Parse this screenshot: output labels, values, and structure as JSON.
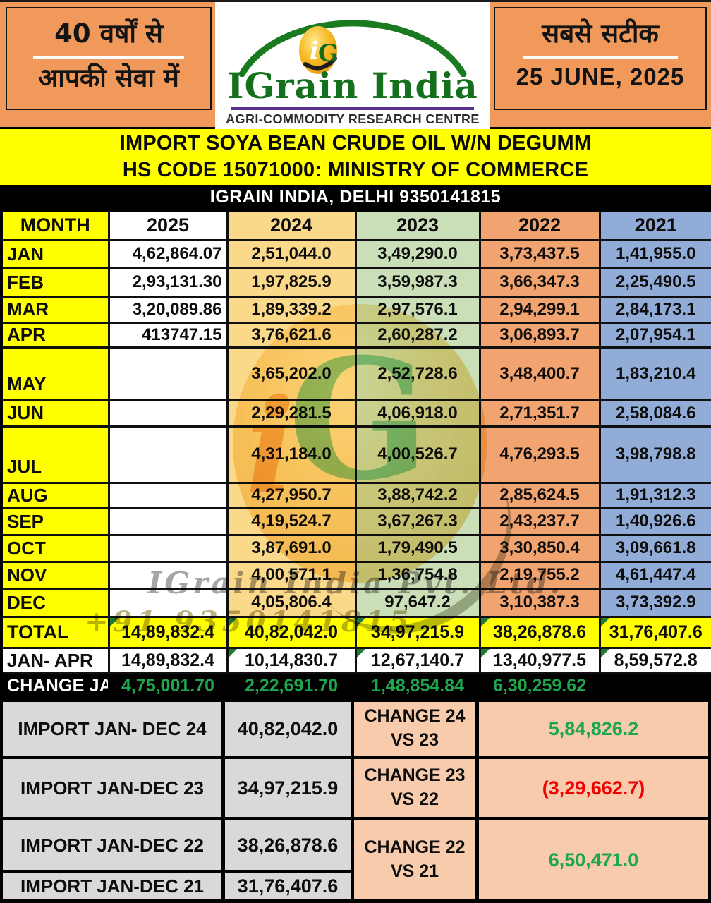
{
  "header": {
    "left_line1": "40 वर्षों से",
    "left_line2": "आपकी सेवा में",
    "logo_monogram_i": "i",
    "logo_monogram_g": "G",
    "logo_title": "IGrain India",
    "logo_subtitle": "AGRI-COMMODITY RESEARCH CENTRE",
    "right_line1": "सबसे सटीक",
    "right_date": "25 JUNE, 2025"
  },
  "title": {
    "line1": "IMPORT SOYA BEAN CRUDE OIL W/N DEGUMM",
    "line2": "HS CODE 15071000: MINISTRY OF COMMERCE",
    "contact_bar": "IGRAIN INDIA, DELHI 9350141815"
  },
  "table": {
    "columns": [
      "MONTH",
      "2025",
      "2024",
      "2023",
      "2022",
      "2021"
    ],
    "rows": [
      {
        "month": "JAN",
        "values": [
          "4,62,864.07",
          "2,51,044.0",
          "3,49,290.0",
          "3,73,437.5",
          "1,41,955.0"
        ]
      },
      {
        "month": "FEB",
        "values": [
          "2,93,131.30",
          "1,97,825.9",
          "3,59,987.3",
          "3,66,347.3",
          "2,25,490.5"
        ]
      },
      {
        "month": "MAR",
        "values": [
          "3,20,089.86",
          "1,89,339.2",
          "2,97,576.1",
          "2,94,299.1",
          "2,84,173.1"
        ]
      },
      {
        "month": "APR",
        "values": [
          "413747.15",
          "3,76,621.6",
          "2,60,287.2",
          "3,06,893.7",
          "2,07,954.1"
        ]
      },
      {
        "month": "MAY",
        "values": [
          "",
          "3,65,202.0",
          "2,52,728.6",
          "3,48,400.7",
          "1,83,210.4"
        ]
      },
      {
        "month": "JUN",
        "values": [
          "",
          "2,29,281.5",
          "4,06,918.0",
          "2,71,351.7",
          "2,58,084.6"
        ]
      },
      {
        "month": "JUL",
        "values": [
          "",
          "4,31,184.0",
          "4,00,526.7",
          "4,76,293.5",
          "3,98,798.8"
        ]
      },
      {
        "month": "AUG",
        "values": [
          "",
          "4,27,950.7",
          "3,88,742.2",
          "2,85,624.5",
          "1,91,312.3"
        ]
      },
      {
        "month": "SEP",
        "values": [
          "",
          "4,19,524.7",
          "3,67,267.3",
          "2,43,237.7",
          "1,40,926.6"
        ]
      },
      {
        "month": "OCT",
        "values": [
          "",
          "3,87,691.0",
          "1,79,490.5",
          "3,30,850.4",
          "3,09,661.8"
        ]
      },
      {
        "month": "NOV",
        "values": [
          "",
          "4,00,571.1",
          "1,36,754.8",
          "2,19,755.2",
          "4,61,447.4"
        ]
      },
      {
        "month": "DEC",
        "values": [
          "",
          "4,05,806.4",
          "97,647.2",
          "3,10,387.3",
          "3,73,392.9"
        ]
      }
    ],
    "total": {
      "label": "TOTAL",
      "values": [
        "14,89,832.4",
        "40,82,042.0",
        "34,97,215.9",
        "38,26,878.6",
        "31,76,407.6"
      ]
    },
    "jan_apr": {
      "label": "JAN- APR",
      "values": [
        "14,89,832.4",
        "10,14,830.7",
        "12,67,140.7",
        "13,40,977.5",
        "8,59,572.8"
      ]
    },
    "change": {
      "label": "CHANGE JAN",
      "values": [
        "4,75,001.70",
        "2,22,691.70",
        "1,48,854.84",
        "6,30,259.62",
        ""
      ]
    }
  },
  "summary": {
    "rows": [
      {
        "label": "IMPORT JAN- DEC 24",
        "value": "40,82,042.0"
      },
      {
        "label": "IMPORT JAN-DEC 23",
        "value": "34,97,215.9"
      },
      {
        "label": "IMPORT JAN-DEC 22",
        "value": "38,26,878.6"
      },
      {
        "label": "IMPORT JAN-DEC 21",
        "value": "31,76,407.6"
      }
    ],
    "changes": [
      {
        "label1": "CHANGE 24",
        "label2": "VS 23",
        "value": "5,84,826.2",
        "direction": "positive"
      },
      {
        "label1": "CHANGE 23",
        "label2": "VS 22",
        "value": "(3,29,662.7)",
        "direction": "negative"
      },
      {
        "label1": "CHANGE 22",
        "label2": "VS 21",
        "value": "6,50,471.0",
        "direction": "positive"
      }
    ]
  },
  "watermark": {
    "company": "IGrain India Pvt. Ltd.",
    "phone": "+91 9350141815",
    "monogram_i": "i",
    "monogram_g": "G"
  },
  "colors": {
    "header_orange": "#F0995B",
    "band_yellow": "#FFFF00",
    "col_2025": "#FFFFFF",
    "col_2024": "#FBD98B",
    "col_2023": "#CADEB8",
    "col_2022": "#F2A470",
    "col_2021": "#92ACD8",
    "summary_gray": "#D9D9D9",
    "summary_peach": "#F8CBAD",
    "positive_green": "#1CA64F",
    "negative_red": "#F20000",
    "logo_green": "#15701E",
    "logo_purple": "#5B3190"
  }
}
